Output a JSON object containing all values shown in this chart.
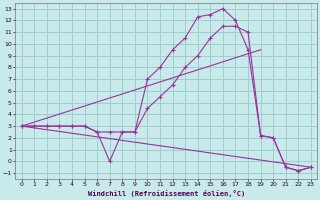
{
  "xlabel": "Windchill (Refroidissement éolien,°C)",
  "background_color": "#c8eaeb",
  "grid_color": "#9fcece",
  "line_color": "#993399",
  "xlim": [
    -0.5,
    23.5
  ],
  "ylim": [
    -1.5,
    13.5
  ],
  "xticks": [
    0,
    1,
    2,
    3,
    4,
    5,
    6,
    7,
    8,
    9,
    10,
    11,
    12,
    13,
    14,
    15,
    16,
    17,
    18,
    19,
    20,
    21,
    22,
    23
  ],
  "yticks": [
    -1,
    0,
    1,
    2,
    3,
    4,
    5,
    6,
    7,
    8,
    9,
    10,
    11,
    12,
    13
  ],
  "series": [
    {
      "x": [
        0,
        1,
        2,
        3,
        4,
        5,
        6,
        7,
        8,
        9,
        10,
        11,
        12,
        13,
        14,
        15,
        16,
        17,
        18,
        19,
        20,
        21,
        22,
        23
      ],
      "y": [
        3,
        3,
        3,
        3,
        3,
        3,
        2.5,
        2.5,
        2.5,
        2.5,
        7,
        8,
        9.5,
        10.5,
        12.3,
        12.5,
        13,
        12,
        9.5,
        2.2,
        2.0,
        -0.5,
        -0.8,
        -0.5
      ]
    },
    {
      "x": [
        0,
        1,
        2,
        3,
        4,
        5,
        6,
        7,
        8,
        9,
        10,
        11,
        12,
        13,
        14,
        15,
        16,
        17,
        18,
        19,
        20,
        21,
        22,
        23
      ],
      "y": [
        3,
        3,
        3,
        3,
        3,
        3,
        2.5,
        0,
        2.5,
        2.5,
        4.5,
        5.5,
        6.5,
        8,
        9,
        10.5,
        11.5,
        11.5,
        11,
        2.2,
        2.0,
        -0.5,
        -0.8,
        -0.5
      ]
    },
    {
      "x": [
        0,
        19
      ],
      "y": [
        3,
        9.5
      ]
    },
    {
      "x": [
        0,
        23
      ],
      "y": [
        3,
        -0.5
      ]
    }
  ]
}
